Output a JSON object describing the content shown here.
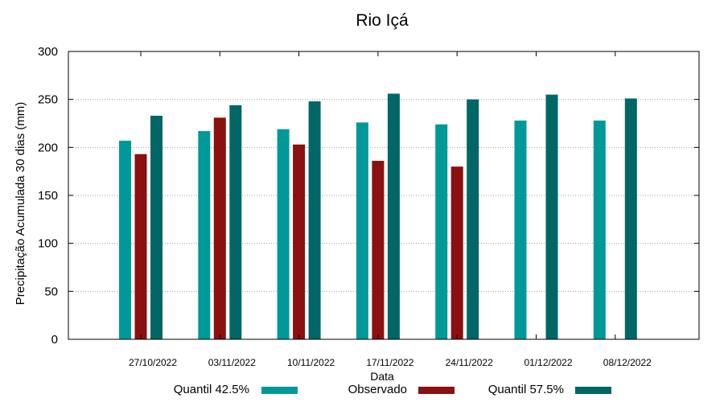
{
  "chart_data": {
    "type": "bar",
    "title": "Rio Içá",
    "xlabel": "Data",
    "ylabel": "Precipitação Acumulada 30 dias (mm)",
    "ylim": [
      0,
      300
    ],
    "yticks": [
      0,
      50,
      100,
      150,
      200,
      250,
      300
    ],
    "grid": true,
    "legend_position": "bottom",
    "categories": [
      "27/10/2022",
      "03/11/2022",
      "10/11/2022",
      "17/11/2022",
      "24/11/2022",
      "01/12/2022",
      "08/12/2022"
    ],
    "series": [
      {
        "name": "Quantil 42.5%",
        "color": "#009999",
        "values": [
          207,
          217,
          219,
          226,
          224,
          228,
          228
        ]
      },
      {
        "name": "Observado",
        "color": "#8b1010",
        "values": [
          193,
          231,
          203,
          186,
          180,
          null,
          null
        ]
      },
      {
        "name": "Quantil 57.5%",
        "color": "#006666",
        "values": [
          233,
          244,
          248,
          256,
          250,
          255,
          251
        ]
      }
    ]
  }
}
